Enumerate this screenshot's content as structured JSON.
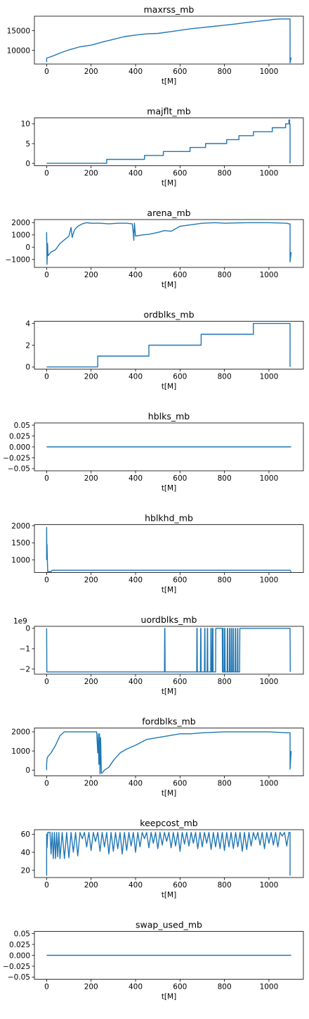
{
  "chart_data": [
    {
      "type": "line",
      "title": "maxrss_mb",
      "xlabel": "t[M]",
      "xlim": [
        -55,
        1155
      ],
      "ylim": [
        6500,
        18700
      ],
      "xticks": [
        0,
        200,
        400,
        600,
        800,
        1000
      ],
      "yticks": [
        10000,
        15000
      ],
      "ytick_labels": [
        "10000",
        "15000"
      ],
      "offset_text": "",
      "series": [
        {
          "x": [
            0,
            0,
            10,
            30,
            60,
            100,
            150,
            200,
            250,
            300,
            350,
            400,
            450,
            500,
            550,
            600,
            650,
            700,
            750,
            800,
            850,
            900,
            950,
            1000,
            1020,
            1050,
            1090,
            1095,
            1095,
            1100
          ],
          "y": [
            7000,
            8000,
            8200,
            8600,
            9300,
            10100,
            10900,
            11300,
            12100,
            12800,
            13500,
            13900,
            14200,
            14300,
            14700,
            15100,
            15500,
            15800,
            16100,
            16400,
            16700,
            17100,
            17400,
            17700,
            17900,
            18000,
            18000,
            18000,
            6800,
            8200
          ]
        }
      ]
    },
    {
      "type": "line",
      "title": "majflt_mb",
      "xlabel": "t[M]",
      "xlim": [
        -55,
        1155
      ],
      "ylim": [
        -0.6,
        11.5
      ],
      "xticks": [
        0,
        200,
        400,
        600,
        800,
        1000
      ],
      "yticks": [
        0,
        5,
        10
      ],
      "ytick_labels": [
        "0",
        "5",
        "10"
      ],
      "offset_text": "",
      "series": [
        {
          "x": [
            0,
            270,
            270,
            440,
            440,
            525,
            525,
            645,
            645,
            715,
            715,
            810,
            810,
            865,
            865,
            930,
            930,
            1015,
            1015,
            1075,
            1075,
            1090,
            1090,
            1093,
            1093,
            1095,
            1095
          ],
          "y": [
            0,
            0,
            1,
            1,
            2,
            2,
            3,
            3,
            4,
            4,
            5,
            5,
            6,
            6,
            7,
            7,
            8,
            8,
            9,
            9,
            10,
            10,
            11,
            11,
            10,
            10,
            0
          ]
        }
      ]
    },
    {
      "type": "line",
      "title": "arena_mb",
      "xlabel": "t[M]",
      "xlim": [
        -55,
        1155
      ],
      "ylim": [
        -1650,
        2250
      ],
      "xticks": [
        0,
        200,
        400,
        600,
        800,
        1000
      ],
      "yticks": [
        -1000,
        0,
        1000,
        2000
      ],
      "ytick_labels": [
        "−1000",
        "0",
        "1000",
        "2000"
      ],
      "offset_text": "",
      "series": [
        {
          "x": [
            0,
            0,
            2,
            4,
            6,
            10,
            20,
            40,
            60,
            80,
            100,
            110,
            115,
            125,
            140,
            160,
            180,
            200,
            240,
            280,
            320,
            360,
            385,
            390,
            392,
            395,
            400,
            430,
            460,
            500,
            530,
            560,
            600,
            640,
            700,
            760,
            800,
            900,
            1000,
            1080,
            1090,
            1095,
            1095,
            1100
          ],
          "y": [
            600,
            1200,
            -1400,
            300,
            -700,
            -600,
            -400,
            -200,
            300,
            600,
            900,
            1600,
            800,
            1400,
            1700,
            1900,
            2000,
            1950,
            1950,
            1900,
            1950,
            1950,
            1900,
            1100,
            550,
            1950,
            900,
            1000,
            1050,
            1200,
            1350,
            1300,
            1700,
            1800,
            1950,
            2000,
            1950,
            2000,
            2000,
            1950,
            1900,
            1900,
            -1200,
            -400
          ]
        }
      ]
    },
    {
      "type": "line",
      "title": "ordblks_mb",
      "xlabel": "t[M]",
      "xlim": [
        -55,
        1155
      ],
      "ylim": [
        -0.2,
        4.2
      ],
      "xticks": [
        0,
        200,
        400,
        600,
        800,
        1000
      ],
      "yticks": [
        0,
        2,
        4
      ],
      "ytick_labels": [
        "0",
        "2",
        "4"
      ],
      "offset_text": "",
      "series": [
        {
          "x": [
            0,
            230,
            230,
            460,
            460,
            695,
            695,
            930,
            930,
            1095,
            1095
          ],
          "y": [
            0,
            0,
            1,
            1,
            2,
            2,
            3,
            3,
            4,
            4,
            0
          ]
        }
      ]
    },
    {
      "type": "line",
      "title": "hblks_mb",
      "xlabel": "t[M]",
      "xlim": [
        -55,
        1155
      ],
      "ylim": [
        -0.055,
        0.055
      ],
      "xticks": [
        0,
        200,
        400,
        600,
        800,
        1000
      ],
      "yticks": [
        -0.05,
        -0.025,
        0,
        0.025,
        0.05
      ],
      "ytick_labels": [
        "−0.05",
        "−0.025",
        "0.000",
        "0.025",
        "0.05"
      ],
      "offset_text": "",
      "series": [
        {
          "x": [
            0,
            1100
          ],
          "y": [
            0,
            0
          ]
        }
      ]
    },
    {
      "type": "line",
      "title": "hblkhd_mb",
      "xlabel": "t[M]",
      "xlim": [
        -55,
        1155
      ],
      "ylim": [
        635,
        2030
      ],
      "xticks": [
        0,
        200,
        400,
        600,
        800,
        1000
      ],
      "yticks": [
        1000,
        1500,
        2000
      ],
      "ytick_labels": [
        "1000",
        "1500",
        "2000"
      ],
      "offset_text": "",
      "series": [
        {
          "x": [
            0,
            0,
            1,
            2,
            3,
            5,
            10,
            20,
            25,
            1095,
            1100
          ],
          "y": [
            1000,
            1950,
            1100,
            1450,
            1000,
            660,
            660,
            660,
            700,
            700,
            650
          ]
        }
      ]
    },
    {
      "type": "line",
      "title": "uordblks_mb",
      "xlabel": "t[M]",
      "xlim": [
        -55,
        1155
      ],
      "ylim": [
        -2.25,
        0.1
      ],
      "xticks": [
        0,
        200,
        400,
        600,
        800,
        1000
      ],
      "yticks": [
        -2,
        -1,
        0
      ],
      "ytick_labels": [
        "−2",
        "−1",
        "0"
      ],
      "offset_text": "1e9",
      "series": [
        {
          "x": [
            0,
            1,
            530,
            531,
            532,
            533,
            675,
            676,
            677,
            678,
            692,
            693,
            694,
            695,
            710,
            711,
            712,
            713,
            722,
            723,
            724,
            725,
            738,
            739,
            740,
            741,
            745,
            746,
            748,
            749,
            760,
            761,
            790,
            791,
            792,
            793,
            794,
            795,
            800,
            801,
            802,
            803,
            812,
            813,
            814,
            815,
            822,
            823,
            824,
            825,
            830,
            831,
            832,
            833,
            838,
            839,
            840,
            841,
            848,
            849,
            850,
            851,
            858,
            859,
            860,
            861,
            868,
            869,
            1095,
            1096
          ],
          "y": [
            0,
            -2.14,
            -2.14,
            0,
            0,
            -2.14,
            -2.14,
            0,
            0,
            -2.14,
            -2.14,
            0,
            0,
            -2.14,
            -2.14,
            0,
            0,
            -2.14,
            -2.14,
            0,
            0,
            -2.14,
            -2.14,
            0,
            0,
            -2.14,
            -2.14,
            0,
            0,
            -2.14,
            -2.14,
            0,
            0,
            -2.14,
            -2.14,
            0,
            0,
            -2.14,
            -2.14,
            0,
            0,
            -2.14,
            -2.14,
            0,
            0,
            -2.14,
            -2.14,
            0,
            0,
            -2.14,
            -2.14,
            0,
            0,
            -2.14,
            -2.14,
            0,
            0,
            -2.14,
            -2.14,
            0,
            0,
            -2.14,
            -2.14,
            0,
            0,
            -2.14,
            -2.14,
            0,
            0,
            -2.14
          ]
        }
      ]
    },
    {
      "type": "line",
      "title": "fordblks_mb",
      "xlabel": "t[M]",
      "xlim": [
        -55,
        1155
      ],
      "ylim": [
        -300,
        2200
      ],
      "xticks": [
        0,
        200,
        400,
        600,
        800,
        1000
      ],
      "yticks": [
        0,
        1000,
        2000
      ],
      "ytick_labels": [
        "0",
        "1000",
        "2000"
      ],
      "offset_text": "",
      "series": [
        {
          "x": [
            0,
            0,
            2,
            5,
            20,
            40,
            60,
            80,
            100,
            150,
            200,
            225,
            230,
            232,
            235,
            238,
            240,
            243,
            246,
            250,
            260,
            280,
            300,
            330,
            360,
            400,
            450,
            500,
            550,
            600,
            650,
            700,
            800,
            900,
            1000,
            1080,
            1090,
            1095,
            1095,
            1100
          ],
          "y": [
            0,
            300,
            600,
            700,
            900,
            1300,
            1800,
            2000,
            2000,
            2000,
            2000,
            2000,
            900,
            1900,
            300,
            1900,
            -200,
            1700,
            -150,
            -150,
            0,
            150,
            500,
            900,
            1100,
            1300,
            1600,
            1700,
            1800,
            1900,
            1900,
            1950,
            2000,
            2000,
            2000,
            1950,
            1950,
            1950,
            50,
            1000
          ]
        }
      ]
    },
    {
      "type": "line",
      "title": "keepcost_mb",
      "xlabel": "t[M]",
      "xlim": [
        -55,
        1155
      ],
      "ylim": [
        12,
        65
      ],
      "xticks": [
        0,
        200,
        400,
        600,
        800,
        1000
      ],
      "yticks": [
        20,
        40,
        60
      ],
      "ytick_labels": [
        "20",
        "40",
        "60"
      ],
      "offset_text": "",
      "series": [
        {
          "x": [
            0,
            0,
            2,
            5,
            15,
            20,
            25,
            30,
            35,
            40,
            45,
            50,
            55,
            60,
            70,
            80,
            90,
            100,
            110,
            120,
            130,
            140,
            150,
            160,
            170,
            180,
            190,
            200,
            210,
            220,
            230,
            240,
            250,
            260,
            270,
            280,
            290,
            300,
            310,
            320,
            330,
            340,
            350,
            360,
            370,
            380,
            390,
            400,
            410,
            420,
            430,
            440,
            450,
            460,
            470,
            480,
            490,
            500,
            510,
            520,
            530,
            540,
            550,
            560,
            570,
            580,
            590,
            600,
            610,
            620,
            630,
            640,
            650,
            660,
            670,
            680,
            690,
            700,
            710,
            720,
            730,
            740,
            750,
            760,
            770,
            780,
            790,
            800,
            810,
            820,
            830,
            840,
            850,
            860,
            870,
            880,
            890,
            900,
            910,
            920,
            930,
            940,
            950,
            960,
            970,
            980,
            990,
            1000,
            1010,
            1020,
            1030,
            1040,
            1050,
            1060,
            1070,
            1080,
            1090,
            1095,
            1095
          ],
          "y": [
            14,
            60,
            45,
            62,
            62,
            38,
            62,
            33,
            62,
            33,
            62,
            35,
            62,
            33,
            62,
            33,
            62,
            34,
            62,
            40,
            62,
            36,
            62,
            55,
            62,
            46,
            62,
            42,
            62,
            52,
            62,
            41,
            62,
            46,
            62,
            38,
            62,
            41,
            62,
            44,
            62,
            38,
            62,
            42,
            62,
            47,
            62,
            40,
            62,
            46,
            62,
            55,
            62,
            45,
            62,
            50,
            62,
            44,
            62,
            48,
            62,
            52,
            62,
            45,
            62,
            47,
            62,
            41,
            62,
            49,
            62,
            47,
            62,
            50,
            62,
            44,
            62,
            46,
            62,
            50,
            62,
            43,
            62,
            46,
            62,
            44,
            62,
            42,
            62,
            46,
            62,
            44,
            62,
            46,
            62,
            41,
            62,
            43,
            62,
            47,
            62,
            54,
            62,
            48,
            62,
            44,
            62,
            50,
            62,
            48,
            62,
            46,
            62,
            58,
            62,
            47,
            62,
            62,
            14
          ]
        }
      ]
    },
    {
      "type": "line",
      "title": "swap_used_mb",
      "xlabel": "t[M]",
      "xlim": [
        -55,
        1155
      ],
      "ylim": [
        -0.055,
        0.055
      ],
      "xticks": [
        0,
        200,
        400,
        600,
        800,
        1000
      ],
      "yticks": [
        -0.05,
        -0.025,
        0,
        0.025,
        0.05
      ],
      "ytick_labels": [
        "−0.05",
        "−0.025",
        "0.000",
        "0.025",
        "0.05"
      ],
      "offset_text": "",
      "series": [
        {
          "x": [
            0,
            1100
          ],
          "y": [
            0,
            0
          ]
        }
      ]
    }
  ]
}
